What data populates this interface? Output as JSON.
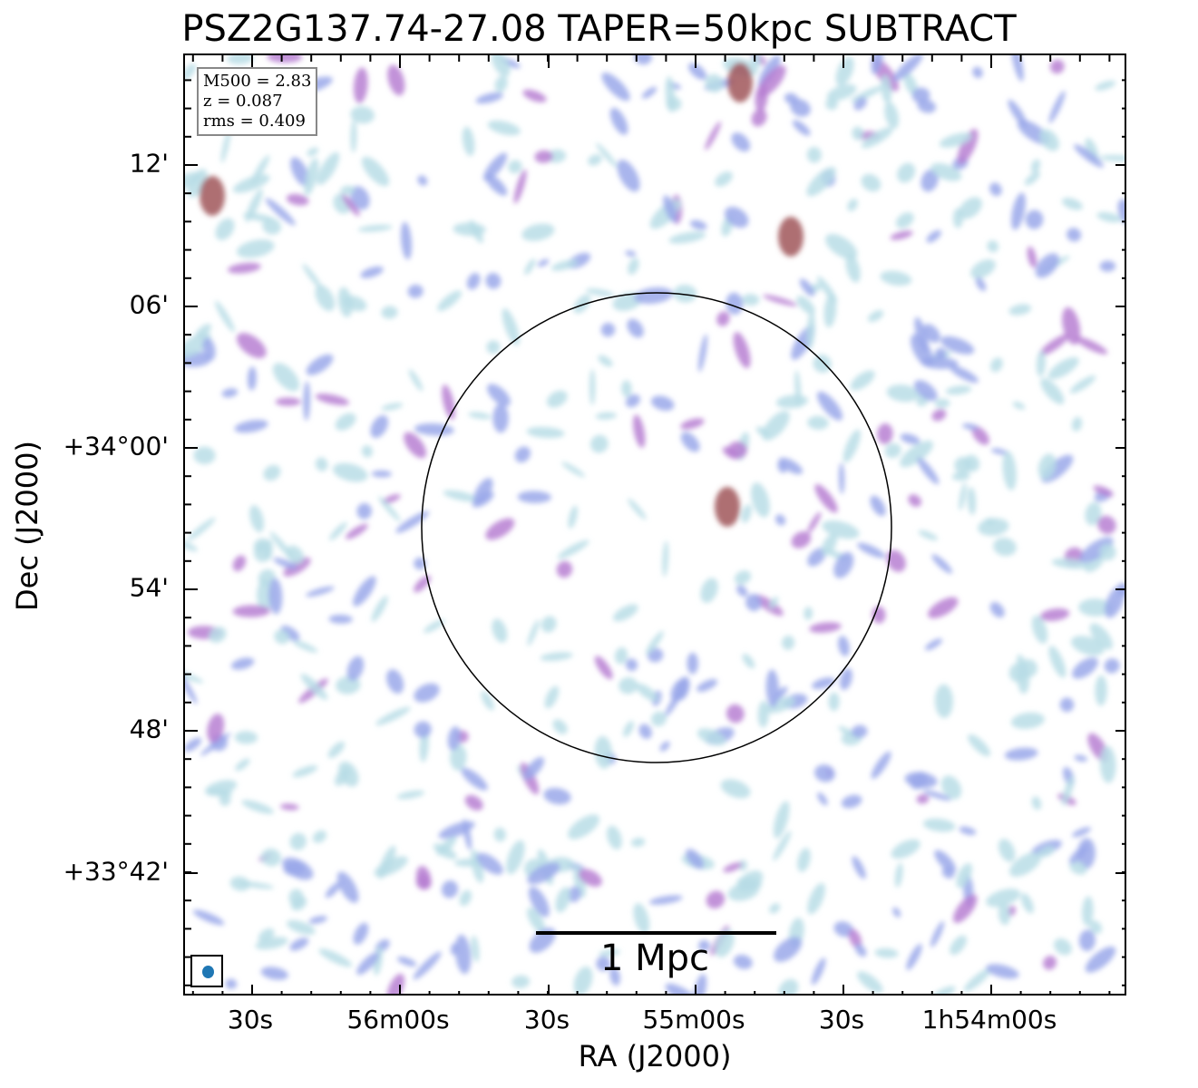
{
  "figure": {
    "title": "PSZ2G137.74-27.08 TAPER=50kpc SUBTRACT",
    "xlabel": "RA (J2000)",
    "ylabel": "Dec (J2000)",
    "x_ticks": [
      "30s",
      "56m00s",
      "30s",
      "55m00s",
      "30s",
      "1h54m00s"
    ],
    "y_ticks": [
      "12'",
      "06'",
      "+34°00'",
      "54'",
      "48'",
      "+33°42'"
    ],
    "info": {
      "m500": "M500 = 2.83",
      "z": "z = 0.087",
      "rms": "rms = 0.409"
    },
    "scalebar_label": "1 Mpc",
    "colors": {
      "background": "#ffffff",
      "low_emission": "#b8dde6",
      "mid_emission": "#9aa8ea",
      "high_emission": "#b77fd2",
      "peak_emission": "#a0555a",
      "beam": "#1f77b4"
    }
  }
}
